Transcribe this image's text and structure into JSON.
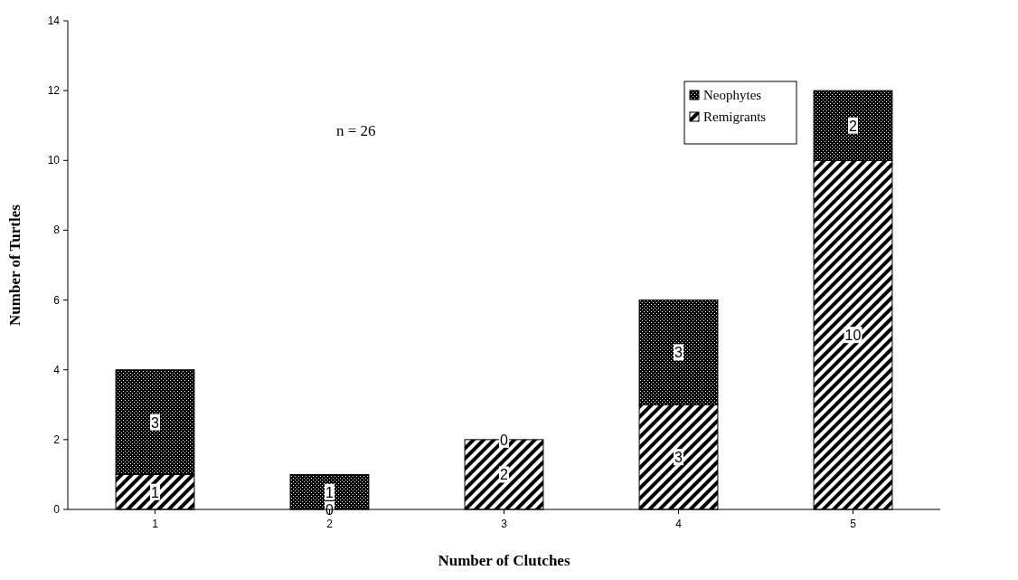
{
  "chart_data": {
    "type": "bar",
    "stacked": true,
    "xlabel": "Number of Clutches",
    "ylabel": "Number of Turtles",
    "categories": [
      "1",
      "2",
      "3",
      "4",
      "5"
    ],
    "series": [
      {
        "name": "Remigrants",
        "color": "#000000",
        "values": [
          1,
          0,
          2,
          3,
          10
        ]
      },
      {
        "name": "Neophytes",
        "color": "#000000",
        "values": [
          3,
          1,
          0,
          3,
          2
        ]
      }
    ],
    "ylim": [
      0,
      14
    ],
    "yticks": [
      0,
      2,
      4,
      6,
      8,
      10,
      12,
      14
    ],
    "data_labels": true,
    "legend": "top right",
    "annotations": [
      "n = 26"
    ]
  }
}
